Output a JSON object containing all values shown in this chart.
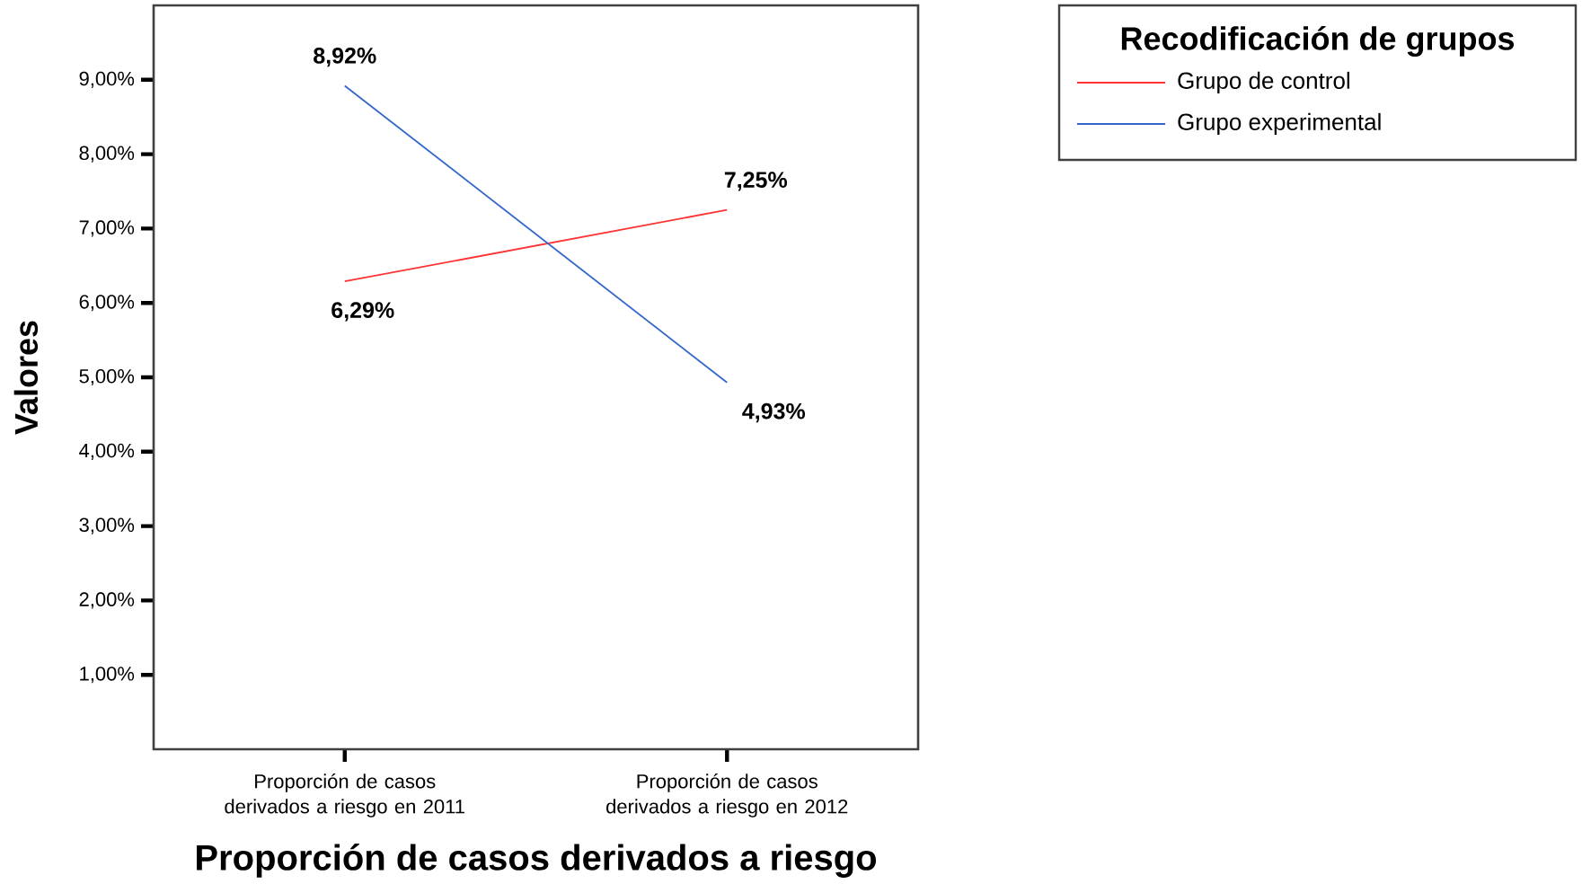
{
  "chart_data": {
    "type": "line",
    "xlabel": "Proporción de casos derivados a riesgo",
    "ylabel": "Valores",
    "legend_title": "Recodificación de grupos",
    "categories": [
      "Proporción de casos derivados a riesgo en 2011",
      "Proporción de casos derivados a riesgo en 2012"
    ],
    "series": [
      {
        "name": "Grupo de control",
        "color": "#ff3333",
        "values": [
          6.29,
          7.25
        ],
        "value_labels": [
          "6,29%",
          "7,25%"
        ]
      },
      {
        "name": "Grupo experimental",
        "color": "#3366cc",
        "values": [
          8.92,
          4.93
        ],
        "value_labels": [
          "8,92%",
          "4,93%"
        ]
      }
    ],
    "ylim": [
      0,
      10
    ],
    "yticks": [
      {
        "value": 1,
        "label": "1,00%"
      },
      {
        "value": 2,
        "label": "2,00%"
      },
      {
        "value": 3,
        "label": "3,00%"
      },
      {
        "value": 4,
        "label": "4,00%"
      },
      {
        "value": 5,
        "label": "5,00%"
      },
      {
        "value": 6,
        "label": "6,00%"
      },
      {
        "value": 7,
        "label": "7,00%"
      },
      {
        "value": 8,
        "label": "8,00%"
      },
      {
        "value": 9,
        "label": "9,00%"
      }
    ],
    "legend": "top right"
  }
}
